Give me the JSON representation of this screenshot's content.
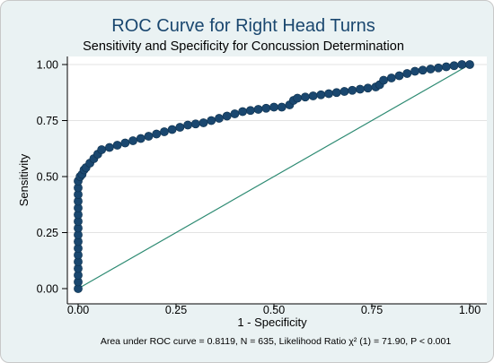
{
  "chart_data": {
    "type": "scatter",
    "title": "ROC Curve for Right Head Turns",
    "subtitle": "Sensitivity and Specificity for Concussion Determination",
    "xlabel": "1 - Specificity",
    "ylabel": "Sensitivity",
    "xlim": [
      0,
      1
    ],
    "ylim": [
      0,
      1
    ],
    "x_ticks": [
      "0.00",
      "0.25",
      "0.50",
      "0.75",
      "1.00"
    ],
    "y_ticks": [
      "0.00",
      "0.25",
      "0.50",
      "0.75",
      "1.00"
    ],
    "grid": "horizontal",
    "note": "Area under ROC curve = 0.8119, N = 635, Likelihood Ratio χ² (1) = 71.90, P < 0.001",
    "colors": {
      "title": "#1a476f",
      "markers": "#1a476f",
      "reference_line": "#2e8b73",
      "plot_background": "#ffffff",
      "outer_background": "#eaf2f3"
    },
    "reference_line": [
      [
        0,
        0
      ],
      [
        1,
        1
      ]
    ],
    "series": [
      {
        "points": [
          [
            0.0,
            0.0
          ],
          [
            0.0,
            0.03
          ],
          [
            0.0,
            0.06
          ],
          [
            0.0,
            0.09
          ],
          [
            0.0,
            0.12
          ],
          [
            0.0,
            0.15
          ],
          [
            0.0,
            0.18
          ],
          [
            0.0,
            0.21
          ],
          [
            0.0,
            0.24
          ],
          [
            0.0,
            0.27
          ],
          [
            0.0,
            0.3
          ],
          [
            0.0,
            0.33
          ],
          [
            0.0,
            0.36
          ],
          [
            0.0,
            0.39
          ],
          [
            0.0,
            0.42
          ],
          [
            0.0,
            0.45
          ],
          [
            0.0,
            0.48
          ],
          [
            0.005,
            0.5
          ],
          [
            0.01,
            0.51
          ],
          [
            0.015,
            0.53
          ],
          [
            0.02,
            0.54
          ],
          [
            0.03,
            0.56
          ],
          [
            0.04,
            0.58
          ],
          [
            0.05,
            0.6
          ],
          [
            0.06,
            0.62
          ],
          [
            0.08,
            0.63
          ],
          [
            0.1,
            0.64
          ],
          [
            0.12,
            0.65
          ],
          [
            0.14,
            0.66
          ],
          [
            0.16,
            0.67
          ],
          [
            0.18,
            0.68
          ],
          [
            0.2,
            0.69
          ],
          [
            0.22,
            0.7
          ],
          [
            0.24,
            0.71
          ],
          [
            0.26,
            0.72
          ],
          [
            0.28,
            0.73
          ],
          [
            0.3,
            0.735
          ],
          [
            0.32,
            0.74
          ],
          [
            0.34,
            0.75
          ],
          [
            0.36,
            0.76
          ],
          [
            0.38,
            0.77
          ],
          [
            0.4,
            0.78
          ],
          [
            0.42,
            0.79
          ],
          [
            0.44,
            0.795
          ],
          [
            0.46,
            0.8
          ],
          [
            0.48,
            0.805
          ],
          [
            0.5,
            0.81
          ],
          [
            0.52,
            0.81
          ],
          [
            0.54,
            0.82
          ],
          [
            0.55,
            0.84
          ],
          [
            0.56,
            0.85
          ],
          [
            0.58,
            0.855
          ],
          [
            0.6,
            0.86
          ],
          [
            0.62,
            0.865
          ],
          [
            0.64,
            0.87
          ],
          [
            0.66,
            0.875
          ],
          [
            0.68,
            0.88
          ],
          [
            0.7,
            0.885
          ],
          [
            0.72,
            0.89
          ],
          [
            0.74,
            0.895
          ],
          [
            0.76,
            0.9
          ],
          [
            0.77,
            0.91
          ],
          [
            0.78,
            0.93
          ],
          [
            0.8,
            0.94
          ],
          [
            0.82,
            0.95
          ],
          [
            0.84,
            0.96
          ],
          [
            0.86,
            0.97
          ],
          [
            0.88,
            0.975
          ],
          [
            0.9,
            0.98
          ],
          [
            0.92,
            0.985
          ],
          [
            0.94,
            0.99
          ],
          [
            0.96,
            0.995
          ],
          [
            0.98,
            1.0
          ],
          [
            1.0,
            1.0
          ]
        ]
      }
    ]
  }
}
